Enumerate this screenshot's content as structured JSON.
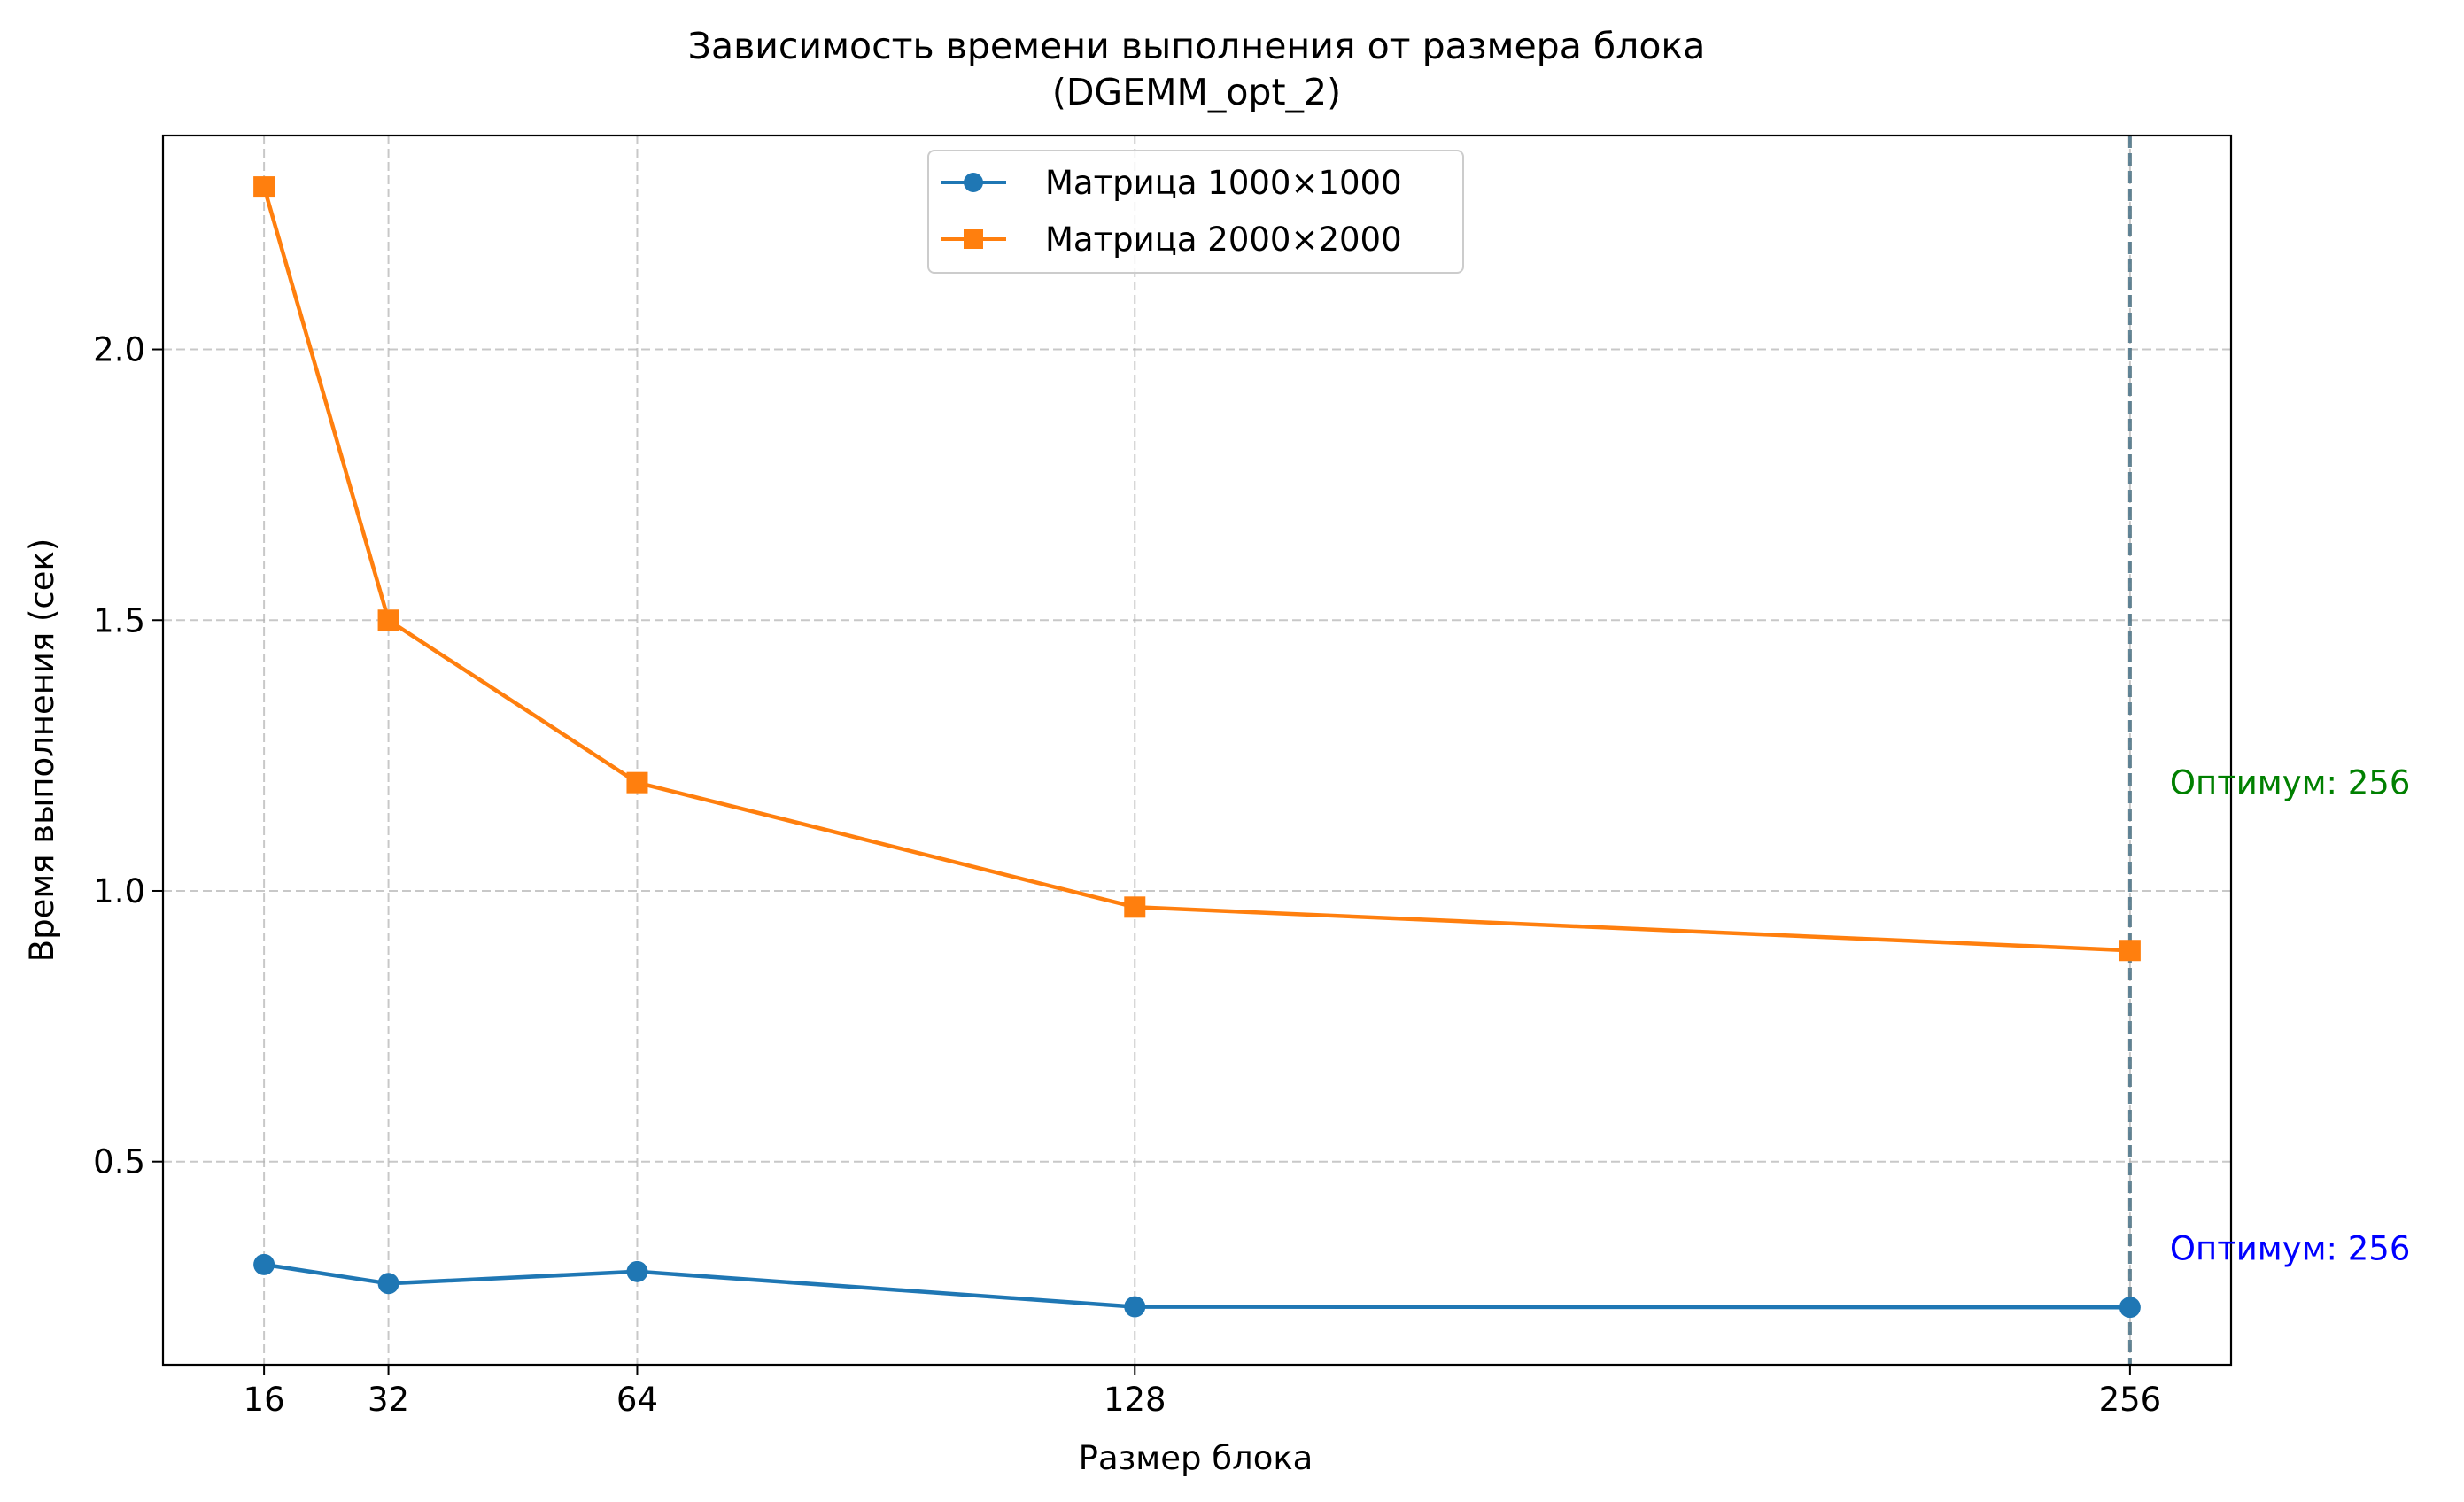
{
  "chart_data": {
    "type": "line",
    "title": "Зависимость времени выполнения от размера блока",
    "subtitle": "(DGEMM_opt_2)",
    "xlabel": "Размер блока",
    "ylabel": "Время выполнения (сек)",
    "x": [
      16,
      32,
      64,
      128,
      256
    ],
    "x_tick_labels": [
      "16",
      "32",
      "64",
      "128",
      "256"
    ],
    "xlim": [
      3,
      269
    ],
    "ylim": [
      0.125,
      2.395
    ],
    "y_ticks": [
      0.5,
      1.0,
      1.5,
      2.0
    ],
    "y_tick_labels": [
      "0.5",
      "1.0",
      "1.5",
      "2.0"
    ],
    "grid": true,
    "legend_position": "top-center",
    "series": [
      {
        "name": "Матрица 1000×1000",
        "marker": "circle",
        "color": "#1f77b4",
        "values": [
          0.31,
          0.275,
          0.297,
          0.232,
          0.231
        ]
      },
      {
        "name": "Матрица 2000×2000",
        "marker": "square",
        "color": "#ff7f0e",
        "values": [
          2.3,
          1.5,
          1.2,
          0.97,
          0.89
        ]
      }
    ],
    "optimum_line": {
      "x": 256,
      "colors": [
        "#1f77b4",
        "#ff7f0e"
      ]
    },
    "annotations": [
      {
        "text": "Оптимум: 256",
        "color": "#008000",
        "x": 256,
        "y": 1.2
      },
      {
        "text": "Оптимум: 256",
        "color": "#0000ff",
        "x": 256,
        "y": 0.34
      }
    ]
  }
}
